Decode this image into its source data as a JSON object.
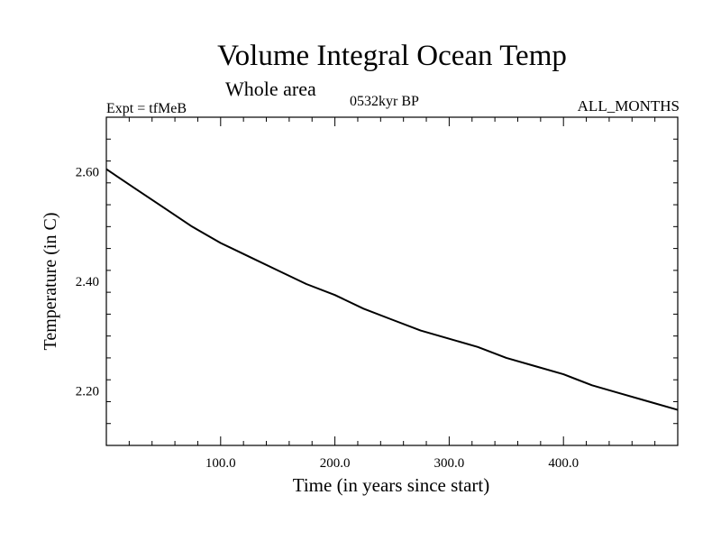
{
  "title": "Volume Integral Ocean Temp",
  "subtitle": "Whole area",
  "experiment": "Expt = tfMeB",
  "period": "0532kyr BP",
  "months": "ALL_MONTHS",
  "chart_data": {
    "type": "line",
    "xlabel": "Time (in years since start)",
    "ylabel": "Temperature (in C)",
    "xlim": [
      0,
      500
    ],
    "ylim": [
      2.1,
      2.7
    ],
    "grid": false,
    "x_ticks": [
      100,
      200,
      300,
      400
    ],
    "x_tick_labels": [
      "100.0",
      "200.0",
      "300.0",
      "400.0"
    ],
    "y_ticks": [
      2.2,
      2.4,
      2.6
    ],
    "y_tick_labels": [
      "2.20",
      "2.40",
      "2.60"
    ],
    "series": [
      {
        "color": "#000000",
        "x": [
          0,
          25,
          50,
          75,
          100,
          125,
          150,
          175,
          200,
          225,
          250,
          275,
          300,
          325,
          350,
          375,
          400,
          425,
          450,
          475,
          500
        ],
        "y": [
          2.605,
          2.57,
          2.535,
          2.5,
          2.47,
          2.445,
          2.42,
          2.395,
          2.375,
          2.35,
          2.33,
          2.31,
          2.295,
          2.28,
          2.26,
          2.245,
          2.23,
          2.21,
          2.195,
          2.18,
          2.165
        ]
      }
    ]
  }
}
